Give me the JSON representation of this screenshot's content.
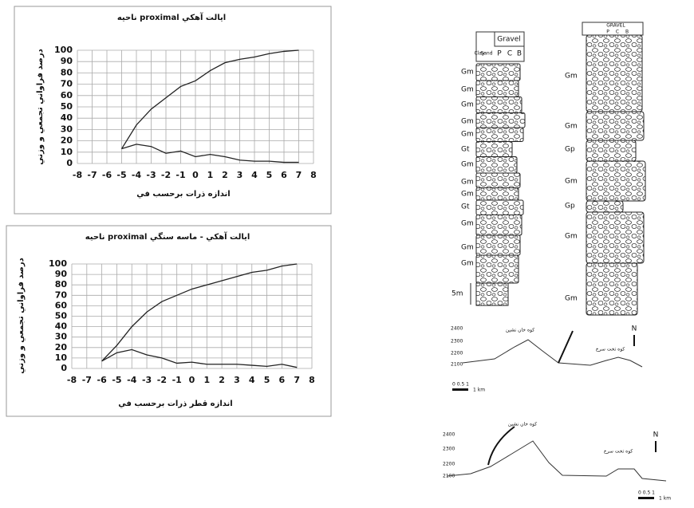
{
  "chart_data": [
    {
      "type": "line",
      "title": "ناحيه proximal  ايالت آهكي",
      "x_label": "اندازه ذرات برحسب في",
      "y_label": "درصد فراواني تجمعي و وزني",
      "x": [
        -5,
        -4,
        -3,
        -2,
        -1,
        0,
        1,
        2,
        3,
        4,
        5,
        6,
        7
      ],
      "series": [
        {
          "color": "#222222",
          "values": [
            13,
            34,
            48,
            58,
            68,
            73,
            82,
            89,
            92,
            94,
            97,
            99,
            100
          ]
        },
        {
          "color": "#222222",
          "values": [
            13,
            17,
            15,
            9,
            11,
            6,
            8,
            6,
            3,
            2,
            2,
            1,
            1
          ]
        }
      ],
      "xlim": [
        -8,
        8
      ],
      "xticks": [
        -8,
        -7,
        -6,
        -5,
        -4,
        -3,
        -2,
        -1,
        0,
        1,
        2,
        3,
        4,
        5,
        6,
        7,
        8
      ],
      "ylim": [
        0,
        100
      ],
      "yticks": [
        0,
        10,
        20,
        30,
        40,
        50,
        60,
        70,
        80,
        90,
        100
      ],
      "grid": true
    },
    {
      "type": "line",
      "title": "ناحيه proximal ايالت آهكي - ماسه سنگي",
      "x_label": "اندازه قطر ذرات برحسب في",
      "y_label": "درصد فراواني تجمعي و وزني",
      "x": [
        -6,
        -5,
        -4,
        -3,
        -2,
        -1,
        0,
        1,
        2,
        3,
        4,
        5,
        6,
        7
      ],
      "series": [
        {
          "color": "#222222",
          "values": [
            7,
            22,
            40,
            54,
            64,
            70,
            76,
            80,
            84,
            88,
            92,
            94,
            98,
            100
          ]
        },
        {
          "color": "#222222",
          "values": [
            7,
            15,
            18,
            13,
            10,
            5,
            6,
            4,
            4,
            4,
            3,
            2,
            4,
            1
          ]
        }
      ],
      "xlim": [
        -8,
        8
      ],
      "xticks": [
        -8,
        -7,
        -6,
        -5,
        -4,
        -3,
        -2,
        -1,
        0,
        1,
        2,
        3,
        4,
        5,
        6,
        7,
        8
      ],
      "ylim": [
        0,
        100
      ],
      "yticks": [
        0,
        10,
        20,
        30,
        40,
        50,
        60,
        70,
        80,
        90,
        100
      ],
      "grid": true
    }
  ],
  "stratigraphy": {
    "left_column": {
      "header": "Gravel",
      "subheaders": [
        "Clay",
        "Sand",
        "P",
        "C",
        "B"
      ],
      "facies": [
        "Gm",
        "Gm",
        "Gm",
        "Gm",
        "Gm",
        "Gt",
        "Gm",
        "Gm",
        "Gm",
        "Gt",
        "Gm",
        "Gm",
        "Gm"
      ],
      "scale": "5m"
    },
    "right_column": {
      "header": "GRAVEL",
      "subheaders": [
        "P",
        "C",
        "B"
      ],
      "facies": [
        "Gm",
        "Gm",
        "Gp",
        "Gm",
        "Gp",
        "Gm",
        "Gm"
      ]
    }
  },
  "profiles": [
    {
      "elevations": [
        2400,
        2300,
        2200,
        2100
      ],
      "peaks": [
        "كوه خان نشين",
        "كوه تخت سرخ"
      ],
      "north": "N",
      "scale": [
        "0 0.5 1",
        "1 km"
      ]
    },
    {
      "elevations": [
        2400,
        2300,
        2200,
        2100
      ],
      "peaks": [
        "كوه خان نشين",
        "كوه تخت سرخ"
      ],
      "north": "N",
      "scale": [
        "0 0.5 1",
        "1 km"
      ]
    }
  ]
}
